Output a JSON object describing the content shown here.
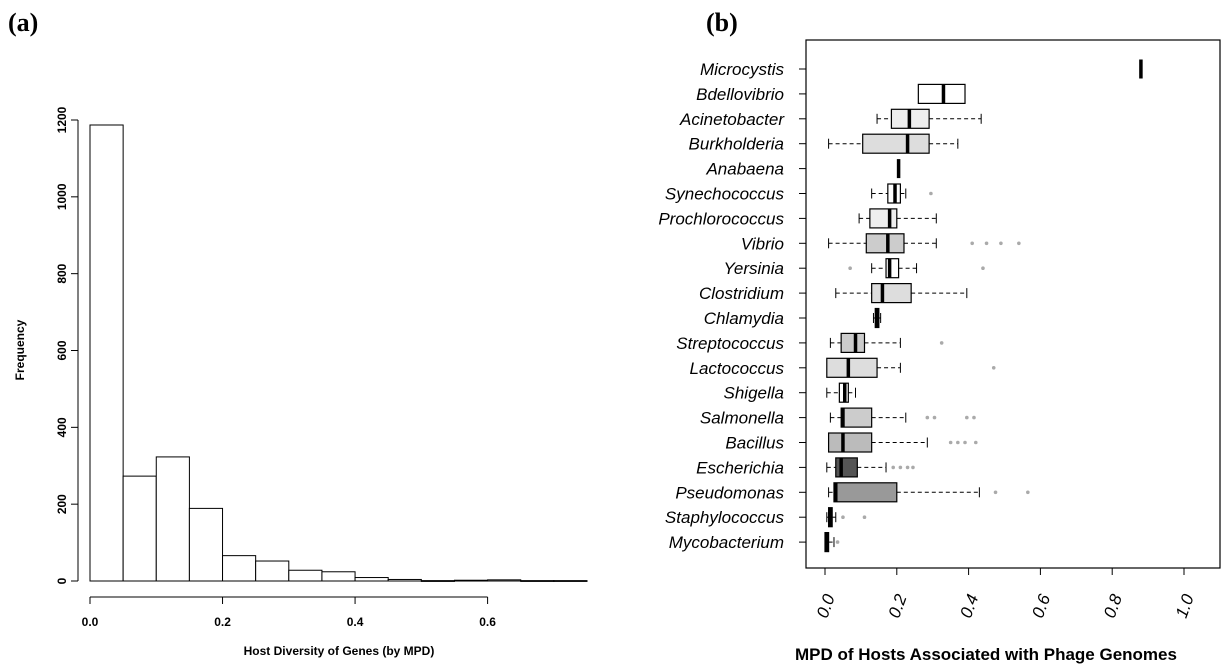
{
  "chart_data": [
    {
      "panel_label": "(a)",
      "type": "bar",
      "subtype": "histogram",
      "xlabel": "Host Diversity of Genes (by MPD)",
      "ylabel": "Frequency",
      "bin_width": 0.05,
      "bins": [
        {
          "start": 0.0,
          "end": 0.05,
          "count": 1187
        },
        {
          "start": 0.05,
          "end": 0.1,
          "count": 273
        },
        {
          "start": 0.1,
          "end": 0.15,
          "count": 323
        },
        {
          "start": 0.15,
          "end": 0.2,
          "count": 189
        },
        {
          "start": 0.2,
          "end": 0.25,
          "count": 66
        },
        {
          "start": 0.25,
          "end": 0.3,
          "count": 52
        },
        {
          "start": 0.3,
          "end": 0.35,
          "count": 28
        },
        {
          "start": 0.35,
          "end": 0.4,
          "count": 24
        },
        {
          "start": 0.4,
          "end": 0.45,
          "count": 9
        },
        {
          "start": 0.45,
          "end": 0.5,
          "count": 4
        },
        {
          "start": 0.5,
          "end": 0.55,
          "count": 1
        },
        {
          "start": 0.55,
          "end": 0.6,
          "count": 2
        },
        {
          "start": 0.6,
          "end": 0.65,
          "count": 3
        },
        {
          "start": 0.65,
          "end": 0.7,
          "count": 1
        },
        {
          "start": 0.7,
          "end": 0.75,
          "count": 1
        }
      ],
      "xticks": [
        0.0,
        0.2,
        0.4,
        0.6
      ],
      "xtick_labels": [
        "0.0",
        "0.2",
        "0.4",
        "0.6"
      ],
      "yticks": [
        0,
        200,
        400,
        600,
        800,
        1000,
        1200
      ],
      "ytick_labels": [
        "0",
        "200",
        "400",
        "600",
        "800",
        "1000",
        "1200"
      ],
      "xlim": [
        0.0,
        0.75
      ],
      "ylim": [
        0,
        1200
      ],
      "grid": false
    },
    {
      "panel_label": "(b)",
      "type": "boxplot",
      "orientation": "horizontal",
      "xlabel": "MPD of Hosts Associated with Phage Genomes",
      "xlim": [
        0.0,
        1.0
      ],
      "xticks": [
        0.0,
        0.2,
        0.4,
        0.6,
        0.8,
        1.0
      ],
      "xtick_labels": [
        "0.0",
        "0.2",
        "0.4",
        "0.6",
        "0.8",
        "1.0"
      ],
      "grid": false,
      "categories": [
        {
          "name": "Microcystis",
          "min": 0.88,
          "q1": 0.88,
          "median": 0.88,
          "q3": 0.88,
          "max": 0.88,
          "outliers": [],
          "fill": "#ffffff"
        },
        {
          "name": "Bdellovibrio",
          "min": 0.26,
          "q1": 0.26,
          "median": 0.33,
          "q3": 0.39,
          "max": 0.39,
          "outliers": [],
          "fill": "#ffffff"
        },
        {
          "name": "Acinetobacter",
          "min": 0.145,
          "q1": 0.185,
          "median": 0.235,
          "q3": 0.29,
          "max": 0.435,
          "outliers": [],
          "fill": "#eeeeee"
        },
        {
          "name": "Burkholderia",
          "min": 0.01,
          "q1": 0.105,
          "median": 0.23,
          "q3": 0.29,
          "max": 0.37,
          "outliers": [],
          "fill": "#dddddd"
        },
        {
          "name": "Anabaena",
          "min": 0.205,
          "q1": 0.205,
          "median": 0.205,
          "q3": 0.205,
          "max": 0.205,
          "outliers": [],
          "fill": "#ffffff"
        },
        {
          "name": "Synechococcus",
          "min": 0.13,
          "q1": 0.175,
          "median": 0.195,
          "q3": 0.21,
          "max": 0.225,
          "outliers": [
            0.295
          ],
          "fill": "#ffffff"
        },
        {
          "name": "Prochlorococcus",
          "min": 0.095,
          "q1": 0.125,
          "median": 0.18,
          "q3": 0.2,
          "max": 0.31,
          "outliers": [],
          "fill": "#eeeeee"
        },
        {
          "name": "Vibrio",
          "min": 0.01,
          "q1": 0.115,
          "median": 0.175,
          "q3": 0.22,
          "max": 0.31,
          "outliers": [
            0.41,
            0.45,
            0.49,
            0.54
          ],
          "fill": "#cccccc"
        },
        {
          "name": "Yersinia",
          "min": 0.13,
          "q1": 0.17,
          "median": 0.18,
          "q3": 0.205,
          "max": 0.255,
          "outliers": [
            0.07,
            0.44
          ],
          "fill": "#ffffff"
        },
        {
          "name": "Clostridium",
          "min": 0.03,
          "q1": 0.13,
          "median": 0.16,
          "q3": 0.24,
          "max": 0.395,
          "outliers": [],
          "fill": "#dddddd"
        },
        {
          "name": "Chlamydia",
          "min": 0.135,
          "q1": 0.14,
          "median": 0.145,
          "q3": 0.15,
          "max": 0.155,
          "outliers": [],
          "fill": "#ffffff"
        },
        {
          "name": "Streptococcus",
          "min": 0.015,
          "q1": 0.045,
          "median": 0.085,
          "q3": 0.11,
          "max": 0.21,
          "outliers": [
            0.325
          ],
          "fill": "#cccccc"
        },
        {
          "name": "Lactococcus",
          "min": 0.005,
          "q1": 0.005,
          "median": 0.065,
          "q3": 0.145,
          "max": 0.21,
          "outliers": [
            0.47
          ],
          "fill": "#dddddd"
        },
        {
          "name": "Shigella",
          "min": 0.005,
          "q1": 0.04,
          "median": 0.055,
          "q3": 0.065,
          "max": 0.085,
          "outliers": [],
          "fill": "#ffffff"
        },
        {
          "name": "Salmonella",
          "min": 0.015,
          "q1": 0.045,
          "median": 0.05,
          "q3": 0.13,
          "max": 0.225,
          "outliers": [
            0.285,
            0.305,
            0.395,
            0.415
          ],
          "fill": "#cccccc"
        },
        {
          "name": "Bacillus",
          "min": 0.01,
          "q1": 0.01,
          "median": 0.05,
          "q3": 0.13,
          "max": 0.285,
          "outliers": [
            0.35,
            0.37,
            0.39,
            0.42
          ],
          "fill": "#bbbbbb"
        },
        {
          "name": "Escherichia",
          "min": 0.005,
          "q1": 0.03,
          "median": 0.045,
          "q3": 0.09,
          "max": 0.17,
          "outliers": [
            0.19,
            0.21,
            0.23,
            0.245
          ],
          "fill": "#555555"
        },
        {
          "name": "Pseudomonas",
          "min": 0.01,
          "q1": 0.025,
          "median": 0.03,
          "q3": 0.2,
          "max": 0.43,
          "outliers": [
            0.475,
            0.565
          ],
          "fill": "#999999"
        },
        {
          "name": "Staphylococcus",
          "min": 0.005,
          "q1": 0.01,
          "median": 0.015,
          "q3": 0.02,
          "max": 0.03,
          "outliers": [
            0.05,
            0.11
          ],
          "fill": "#666666"
        },
        {
          "name": "Mycobacterium",
          "min": 0.0,
          "q1": 0.0,
          "median": 0.005,
          "q3": 0.01,
          "max": 0.025,
          "outliers": [
            0.035
          ],
          "fill": "#333333"
        }
      ]
    }
  ]
}
